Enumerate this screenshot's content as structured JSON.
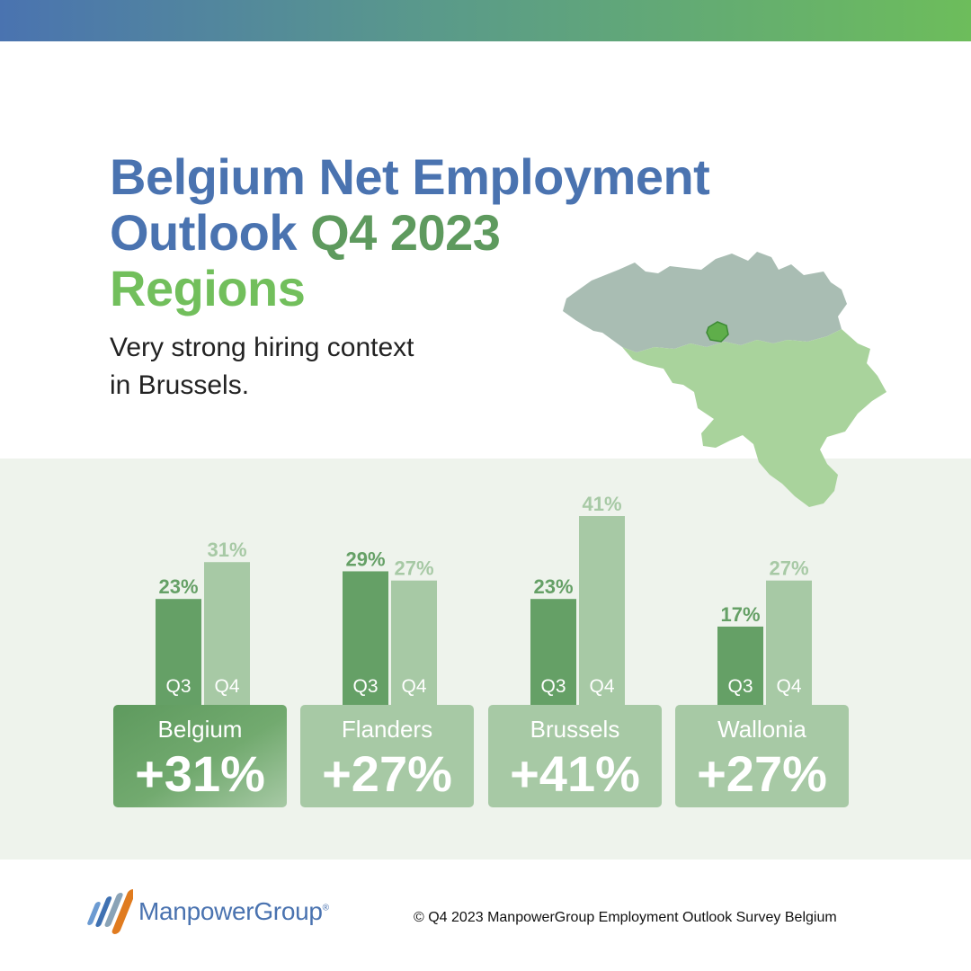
{
  "header": {
    "title_line1": "Belgium Net Employment",
    "title_line2a": "Outlook",
    "title_line2b": "Q4 2023",
    "title_line3": "Regions",
    "subtitle_line1": "Very strong hiring context",
    "subtitle_line2": "in Brussels."
  },
  "colors": {
    "blue": "#4a73b0",
    "dark_green": "#5e9a5e",
    "light_green": "#72bf5c",
    "q3_bar": "#65a066",
    "q4_bar": "#a7c9a5",
    "chart_background": "#eef3ec"
  },
  "map": {
    "regions": [
      "Flanders",
      "Brussels",
      "Wallonia"
    ]
  },
  "chart_data": {
    "type": "bar",
    "categories": [
      "Belgium",
      "Flanders",
      "Brussels",
      "Wallonia"
    ],
    "series": [
      {
        "name": "Q3",
        "values": [
          23,
          29,
          23,
          17
        ]
      },
      {
        "name": "Q4",
        "values": [
          31,
          27,
          41,
          27
        ]
      }
    ],
    "value_labels": {
      "Q3": [
        "23%",
        "29%",
        "23%",
        "17%"
      ],
      "Q4": [
        "31%",
        "27%",
        "41%",
        "27%"
      ]
    },
    "headline_values": [
      "+31%",
      "+27%",
      "+41%",
      "+27%"
    ],
    "highlighted_category": "Belgium",
    "ylim": [
      0,
      41
    ]
  },
  "footer": {
    "brand": "ManpowerGroup",
    "registered": "®",
    "copyright": "© Q4 2023 ManpowerGroup Employment Outlook Survey Belgium"
  }
}
